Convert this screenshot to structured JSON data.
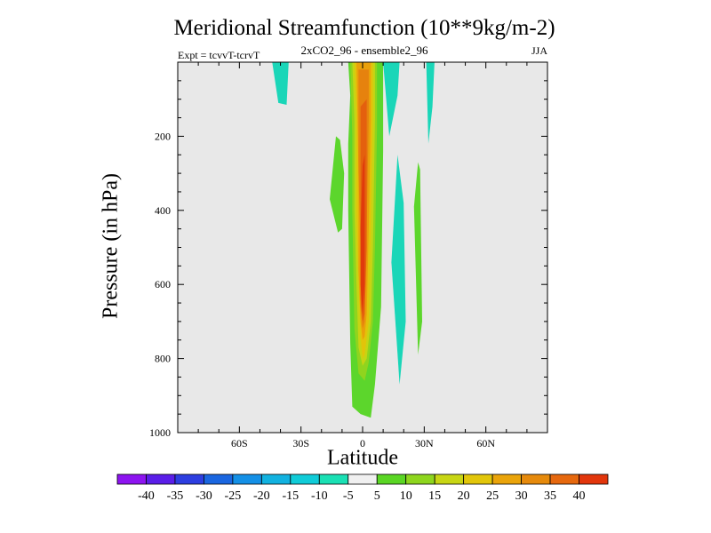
{
  "chart_data": {
    "type": "contour",
    "title": "Meridional Streamfunction (10**9kg/m-2)",
    "subtitle": "2xCO2_96 - ensemble2_96",
    "left_string": "Expt = tcvvT-tcrvT",
    "right_string": "JJA",
    "xlabel": "Latitude",
    "ylabel": "Pressure (in hPa)",
    "xlim": [
      -90,
      90
    ],
    "ylim": [
      0,
      1000
    ],
    "y_reversed": true,
    "background_color": "#e8e8e8",
    "x_ticks": [
      {
        "value": -60,
        "label": "60S"
      },
      {
        "value": -30,
        "label": "30S"
      },
      {
        "value": 0,
        "label": "0"
      },
      {
        "value": 30,
        "label": "30N"
      },
      {
        "value": 60,
        "label": "60N"
      }
    ],
    "y_ticks": [
      {
        "value": 200,
        "label": "200"
      },
      {
        "value": 400,
        "label": "400"
      },
      {
        "value": 600,
        "label": "600"
      },
      {
        "value": 800,
        "label": "800"
      },
      {
        "value": 1000,
        "label": "1000"
      }
    ],
    "colorbar": {
      "labels": [
        "-40",
        "-35",
        "-30",
        "-25",
        "-20",
        "-15",
        "-10",
        "-5",
        "5",
        "10",
        "15",
        "20",
        "25",
        "30",
        "35",
        "40"
      ],
      "colors": [
        "#8d14f0",
        "#5a1ee8",
        "#2d3ee0",
        "#1a66e0",
        "#1490e6",
        "#12b2e0",
        "#10ccd8",
        "#1ae0b4",
        "#f0f0f0",
        "#5ad624",
        "#8ed61e",
        "#c8d614",
        "#e2c60a",
        "#eaa40a",
        "#e68a0c",
        "#e6680e",
        "#e2360c"
      ]
    },
    "regions": [
      {
        "value": "-10 to -5",
        "color": "#1ad6b8",
        "polygon": [
          [
            -44,
            0
          ],
          [
            -36,
            0
          ],
          [
            -37,
            115
          ],
          [
            -41,
            110
          ]
        ]
      },
      {
        "value": "5 to 10",
        "color": "#5cd62c",
        "polygon": [
          [
            -16,
            370
          ],
          [
            -13,
            200
          ],
          [
            -11,
            210
          ],
          [
            -9,
            300
          ],
          [
            -10,
            450
          ],
          [
            -12,
            460
          ]
        ]
      },
      {
        "value": "-10 to -5",
        "color": "#1ad6b8",
        "polygon": [
          [
            10,
            0
          ],
          [
            18,
            0
          ],
          [
            17,
            90
          ],
          [
            13,
            200
          ]
        ]
      },
      {
        "value": "-10 to -5",
        "color": "#1ad6b8",
        "polygon": [
          [
            31,
            0
          ],
          [
            35,
            0
          ],
          [
            34,
            120
          ],
          [
            32,
            220
          ]
        ]
      },
      {
        "value": "-10 to -5",
        "color": "#1ad6b8",
        "polygon": [
          [
            14,
            540
          ],
          [
            17,
            250
          ],
          [
            20,
            380
          ],
          [
            21,
            700
          ],
          [
            18,
            870
          ]
        ]
      },
      {
        "value": "5 to 10",
        "color": "#5cd62c",
        "polygon": [
          [
            25,
            390
          ],
          [
            27,
            270
          ],
          [
            28,
            290
          ],
          [
            29,
            700
          ],
          [
            27,
            790
          ]
        ]
      },
      {
        "value": "5 to 10",
        "color": "#5cd62c",
        "polygon": [
          [
            -7,
            0
          ],
          [
            10,
            0
          ],
          [
            10,
            240
          ],
          [
            9,
            660
          ],
          [
            6,
            870
          ],
          [
            4,
            960
          ],
          [
            -1,
            950
          ],
          [
            -5,
            930
          ],
          [
            -6,
            760
          ],
          [
            -7,
            400
          ],
          [
            -7,
            220
          ],
          [
            -6,
            90
          ]
        ]
      },
      {
        "value": "10 to 15",
        "color": "#90d41e",
        "polygon": [
          [
            -6,
            0
          ],
          [
            7,
            0
          ],
          [
            7,
            180
          ],
          [
            6,
            500
          ],
          [
            5,
            700
          ],
          [
            3,
            810
          ],
          [
            1,
            860
          ],
          [
            -2,
            840
          ],
          [
            -4,
            720
          ],
          [
            -5,
            400
          ],
          [
            -5,
            200
          ]
        ]
      },
      {
        "value": "15 to 20",
        "color": "#c6d414",
        "polygon": [
          [
            -5,
            0
          ],
          [
            6,
            0
          ],
          [
            6,
            150
          ],
          [
            5,
            500
          ],
          [
            4,
            700
          ],
          [
            2,
            800
          ],
          [
            0,
            820
          ],
          [
            -2,
            770
          ],
          [
            -3,
            600
          ],
          [
            -4,
            400
          ],
          [
            -4,
            160
          ]
        ]
      },
      {
        "value": "20 to 25",
        "color": "#e2c40a",
        "polygon": [
          [
            -4,
            0
          ],
          [
            5,
            0
          ],
          [
            5,
            120
          ],
          [
            4,
            450
          ],
          [
            3,
            700
          ],
          [
            1,
            790
          ],
          [
            0,
            800
          ],
          [
            -1,
            740
          ],
          [
            -2,
            600
          ],
          [
            -3,
            400
          ],
          [
            -3,
            140
          ]
        ]
      },
      {
        "value": "25 to 30",
        "color": "#eaa00a",
        "polygon": [
          [
            -3,
            0
          ],
          [
            4,
            0
          ],
          [
            4,
            150
          ],
          [
            3,
            450
          ],
          [
            2,
            680
          ],
          [
            1,
            740
          ],
          [
            0,
            750
          ],
          [
            -1,
            700
          ],
          [
            -2,
            560
          ],
          [
            -2,
            300
          ]
        ]
      },
      {
        "value": "30 to 35",
        "color": "#e6820e",
        "polygon": [
          [
            -2,
            20
          ],
          [
            3,
            20
          ],
          [
            3,
            150
          ],
          [
            2,
            450
          ],
          [
            1,
            700
          ],
          [
            0,
            720
          ],
          [
            -1,
            660
          ],
          [
            -1,
            500
          ],
          [
            -2,
            300
          ]
        ]
      },
      {
        "value": "35 to 40",
        "color": "#e4600e",
        "polygon": [
          [
            -1,
            120
          ],
          [
            2,
            100
          ],
          [
            2,
            300
          ],
          [
            2,
            500
          ],
          [
            1,
            680
          ],
          [
            0,
            700
          ],
          [
            -1,
            640
          ],
          [
            -1,
            450
          ],
          [
            -1,
            200
          ]
        ]
      },
      {
        "value": "> 40",
        "color": "#e03a0c",
        "polygon": [
          [
            0,
            280
          ],
          [
            1,
            250
          ],
          [
            1,
            600
          ],
          [
            0,
            680
          ],
          [
            -1,
            600
          ],
          [
            -1,
            450
          ]
        ]
      }
    ]
  }
}
